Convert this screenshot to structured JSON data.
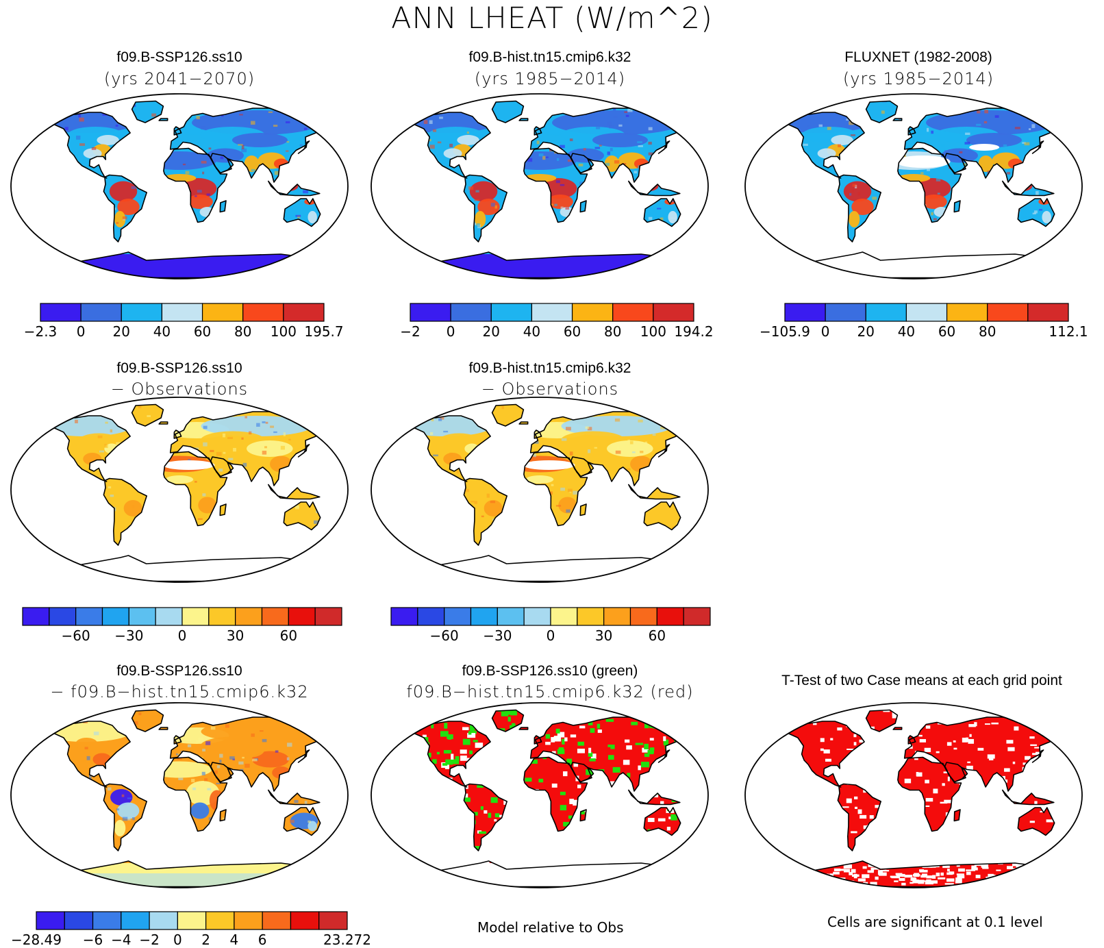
{
  "title": "ANN LHEAT (W/m^2)",
  "panels": [
    {
      "id": "p1",
      "row": 0,
      "col": 0,
      "line1": "f09.B-SSP126.ss10",
      "line2": "(yrs 2041−2070)",
      "style": "abs"
    },
    {
      "id": "p2",
      "row": 0,
      "col": 1,
      "line1": "f09.B-hist.tn15.cmip6.k32",
      "line2": "(yrs 1985−2014)",
      "style": "abs"
    },
    {
      "id": "p3",
      "row": 0,
      "col": 2,
      "line1": "FLUXNET (1982-2008)",
      "line2": "(yrs 1985−2014)",
      "style": "obs"
    },
    {
      "id": "p4",
      "row": 1,
      "col": 0,
      "line1": "f09.B-SSP126.ss10",
      "line2": "− Observations",
      "style": "diff"
    },
    {
      "id": "p5",
      "row": 1,
      "col": 1,
      "line1": "f09.B-hist.tn15.cmip6.k32",
      "line2": "− Observations",
      "style": "diff"
    },
    {
      "id": "p6",
      "row": 2,
      "col": 0,
      "line1": "f09.B-SSP126.ss10",
      "line2": "− f09.B−hist.tn15.cmip6.k32",
      "style": "casediff"
    },
    {
      "id": "p7",
      "row": 2,
      "col": 1,
      "line1": "f09.B-SSP126.ss10 (green)",
      "line2": "f09.B−hist.tn15.cmip6.k32 (red)",
      "style": "relobs"
    },
    {
      "id": "p8",
      "row": 2,
      "col": 2,
      "line1": "T-Test of two Case means at each grid point",
      "line2": "",
      "style": "ttest"
    }
  ],
  "colorbars": [
    {
      "id": "cb1",
      "colors": [
        "#3a1cf0",
        "#3a6ee0",
        "#1eb4f0",
        "#c4e4f2",
        "#fcb414",
        "#f8481c",
        "#d42a2a"
      ],
      "labels": [
        "−2.3",
        "0",
        "20",
        "40",
        "60",
        "80",
        "100",
        "195.7"
      ]
    },
    {
      "id": "cb2",
      "colors": [
        "#3a1cf0",
        "#3a6ee0",
        "#1eb4f0",
        "#c4e4f2",
        "#fcb414",
        "#f8481c",
        "#d42a2a"
      ],
      "labels": [
        "−2",
        "0",
        "20",
        "40",
        "60",
        "80",
        "100",
        "194.2"
      ]
    },
    {
      "id": "cb3",
      "colors": [
        "#3a1cf0",
        "#3a6ee0",
        "#1eb4f0",
        "#c4e4f2",
        "#fcb414",
        "#f8481c",
        "#d42a2a"
      ],
      "labels": [
        "−105.9",
        "0",
        "20",
        "40",
        "60",
        "80",
        "",
        "112.1"
      ]
    },
    {
      "id": "cb4",
      "colors": [
        "#3a1cf0",
        "#2a48e4",
        "#3a7ce8",
        "#20a4f0",
        "#5cc0f0",
        "#a8daf0",
        "#fcf48c",
        "#fcc828",
        "#fca01c",
        "#f86a1c",
        "#e8100c",
        "#d02a2a"
      ],
      "labels": [
        "",
        "",
        "−60",
        "",
        "−30",
        "",
        "0",
        "",
        "30",
        "",
        "60",
        "",
        ""
      ]
    },
    {
      "id": "cb5",
      "colors": [
        "#3a1cf0",
        "#2a48e4",
        "#3a7ce8",
        "#20a4f0",
        "#5cc0f0",
        "#a8daf0",
        "#fcf48c",
        "#fcc828",
        "#fca01c",
        "#f86a1c",
        "#e8100c",
        "#d02a2a"
      ],
      "labels": [
        "",
        "",
        "−60",
        "",
        "−30",
        "",
        "0",
        "",
        "30",
        "",
        "60",
        "",
        ""
      ]
    },
    {
      "id": "cb6",
      "colors": [
        "#3a1cf0",
        "#2a48e4",
        "#3a7ce8",
        "#20a4f0",
        "#a8daf0",
        "#fcf48c",
        "#fcc828",
        "#fca01c",
        "#f86a1c",
        "#e8100c",
        "#d02a2a"
      ],
      "labels": [
        "−28.49",
        "",
        "−6",
        "−4",
        "−2",
        "0",
        "2",
        "4",
        "6",
        "",
        "",
        "23.272"
      ]
    }
  ],
  "notes": {
    "relobs": "Model relative to Obs",
    "ttest": "Cells are significant at 0.1 level"
  },
  "palette": {
    "abs": [
      "#3a1cf0",
      "#3a6ee0",
      "#1eb4f0",
      "#c4e4f2",
      "#fcb414",
      "#f8481c",
      "#d42a2a"
    ],
    "diff": [
      "#3a7ce8",
      "#a8daf0",
      "#fcf48c",
      "#fcc828",
      "#fca01c",
      "#f86a1c"
    ],
    "green": "#22e010",
    "red": "#f40c0c"
  }
}
